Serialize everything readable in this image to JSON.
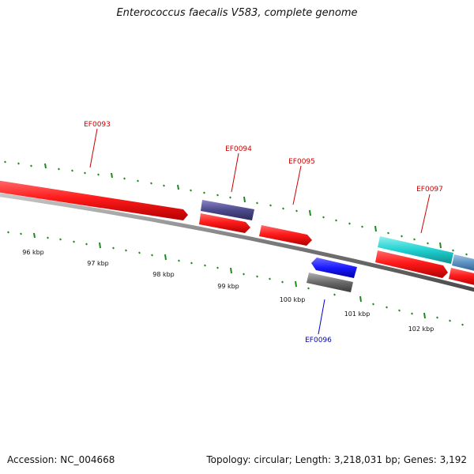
{
  "title": "Enterococcus faecalis V583, complete genome",
  "footer": {
    "accession": "Accession: NC_004668",
    "summary": "Topology: circular; Length: 3,218,031 bp; Genes: 3,192"
  },
  "colors": {
    "backbone": "#8c8c8c",
    "tick": "#1e8a1e",
    "gene_red": "#ff1a1a",
    "gene_navy": "#4d4a8c",
    "gene_blue": "#1a1aff",
    "gene_gray": "#6a6a6a",
    "gene_cyan": "#20d0d0",
    "gene_steel": "#5a90c0",
    "label_red": "#cc0000",
    "label_blue": "#0000cc"
  },
  "scale_labels": [
    "96 kbp",
    "97 kbp",
    "98 kbp",
    "99 kbp",
    "100 kbp",
    "101 kbp",
    "102 kbp"
  ],
  "gene_labels": [
    {
      "text": "EF0093",
      "color": "label_red"
    },
    {
      "text": "EF0094",
      "color": "label_red"
    },
    {
      "text": "EF0095",
      "color": "label_red"
    },
    {
      "text": "EF0097",
      "color": "label_red"
    },
    {
      "text": "EF0096",
      "color": "label_blue"
    }
  ]
}
